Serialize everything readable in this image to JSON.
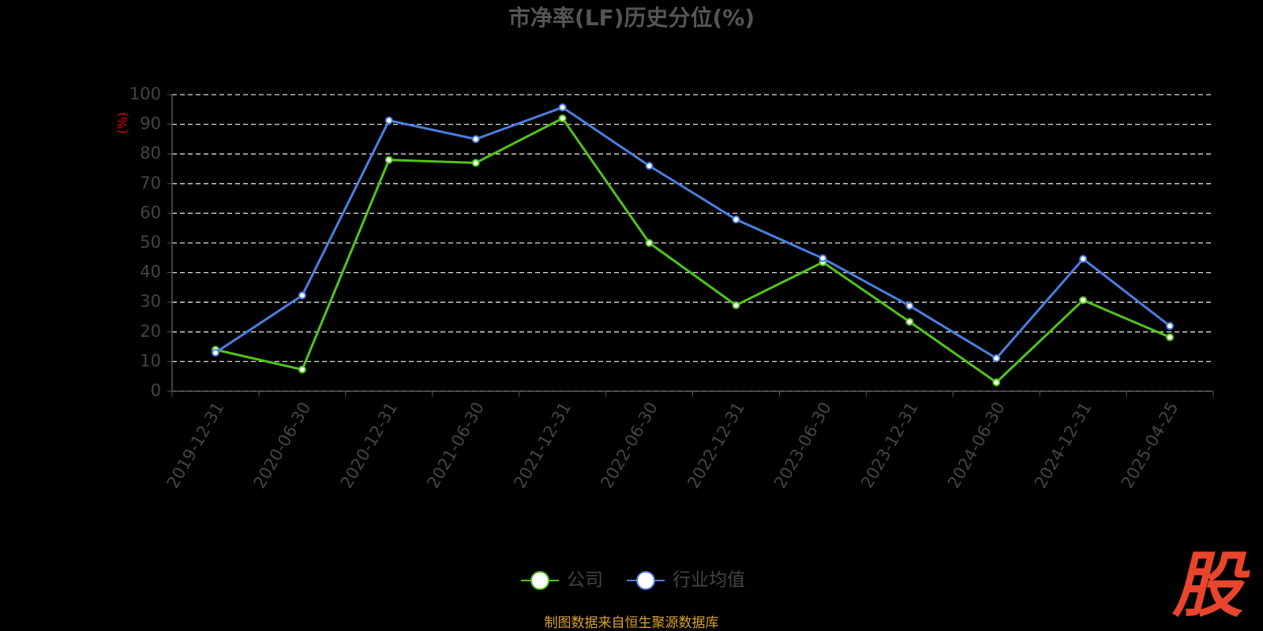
{
  "chart_data": {
    "type": "line",
    "title": "市净率(LF)历史分位(%)",
    "y_label": "(%)",
    "categories": [
      "2019-12-31",
      "2020-06-30",
      "2020-12-31",
      "2021-06-30",
      "2021-12-31",
      "2022-06-30",
      "2022-12-31",
      "2023-06-30",
      "2023-12-31",
      "2024-06-30",
      "2024-12-31",
      "2025-04-25"
    ],
    "series": [
      {
        "name": "公司",
        "color": "#52c41a",
        "values": [
          14,
          7.3,
          78,
          77,
          92,
          50,
          29,
          43.5,
          23.4,
          3,
          30.7,
          18.2
        ]
      },
      {
        "name": "行业均值",
        "color": "#4a7fe0",
        "values": [
          13,
          32.3,
          91.3,
          85,
          95.7,
          76,
          57.9,
          44.8,
          28.8,
          11.1,
          44.6,
          22
        ]
      }
    ],
    "ylim": [
      0,
      100
    ],
    "yticks": [
      0,
      10,
      20,
      30,
      40,
      50,
      60,
      70,
      80,
      90,
      100
    ],
    "grid": true,
    "legend": "bottom"
  },
  "footer": "制图数据来自恒生聚源数据库",
  "logo": "股"
}
